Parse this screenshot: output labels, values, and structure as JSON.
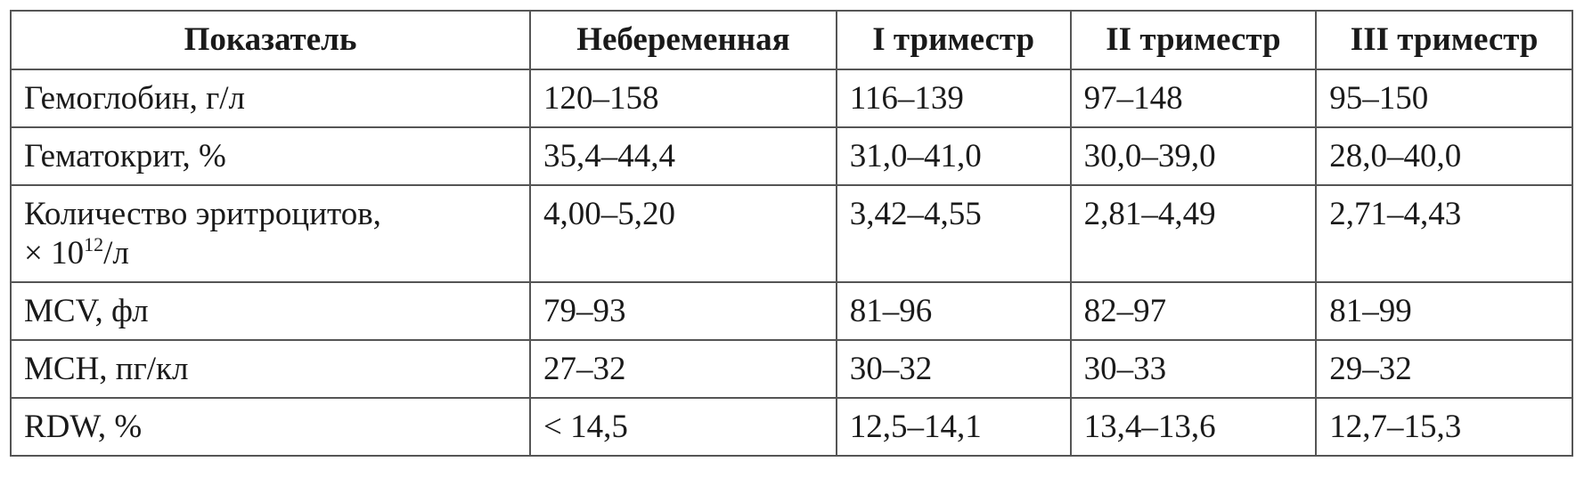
{
  "table": {
    "header": [
      "Показатель",
      "Небеременная",
      "I триместр",
      "II триместр",
      "III триместр"
    ],
    "rows": [
      [
        "Гемоглобин, г/л",
        "120–158",
        "116–139",
        "97–148",
        "95–150"
      ],
      [
        "Гематокрит, %",
        "35,4–44,4",
        "31,0–41,0",
        "30,0–39,0",
        "28,0–40,0"
      ],
      [
        {
          "lines": [
            "Количество эритроцитов,",
            "× 10"
          ],
          "sup": "12",
          "tail": "/л"
        },
        "4,00–5,20",
        "3,42–4,55",
        "2,81–4,49",
        "2,71–4,43"
      ],
      [
        "MCV, фл",
        "79–93",
        "81–96",
        "82–97",
        "81–99"
      ],
      [
        "MCH, пг/кл",
        "27–32",
        "30–32",
        "30–33",
        "29–32"
      ],
      [
        "RDW, %",
        "< 14,5",
        "12,5–14,1",
        "13,4–13,6",
        "12,7–15,3"
      ]
    ]
  }
}
